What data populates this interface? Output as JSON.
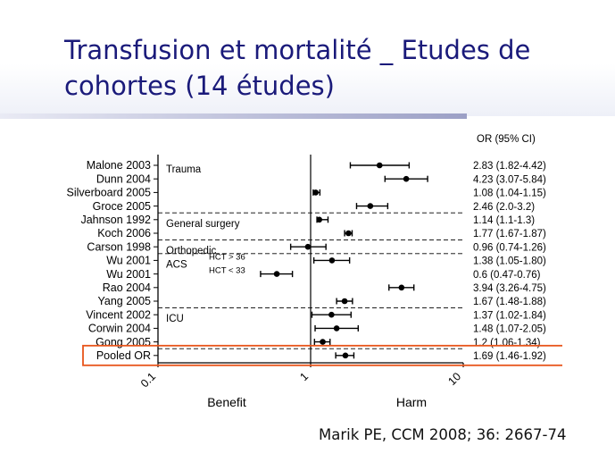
{
  "slide": {
    "title_line1": "Transfusion et mortalité _ Etudes de",
    "title_line2": "cohortes (14 études)",
    "citation": "Marik PE, CCM 2008; 36: 2667-74"
  },
  "chart_data": {
    "type": "forest",
    "x_scale": "log",
    "xlim": [
      0.1,
      10
    ],
    "x_ticks": [
      "0.1",
      "1",
      "10"
    ],
    "reference_line": 1,
    "xlabel_left": "Benefit",
    "xlabel_right": "Harm",
    "column_header": "OR (95% CI)",
    "rows": [
      {
        "label": "Malone 2003",
        "or": 2.83,
        "lo": 1.82,
        "hi": 4.42,
        "ci_text": "2.83 (1.82-4.42)"
      },
      {
        "label": "Dunn 2004",
        "or": 4.23,
        "lo": 3.07,
        "hi": 5.84,
        "ci_text": "4.23 (3.07-5.84)"
      },
      {
        "label": "Silverboard 2005",
        "or": 1.08,
        "lo": 1.04,
        "hi": 1.15,
        "ci_text": "1.08 (1.04-1.15)"
      },
      {
        "label": "Groce 2005",
        "or": 2.46,
        "lo": 2.0,
        "hi": 3.2,
        "ci_text": "2.46 (2.0-3.2)"
      },
      {
        "label": "Jahnson 1992",
        "or": 1.14,
        "lo": 1.1,
        "hi": 1.3,
        "ci_text": "1.14 (1.1-1.3)"
      },
      {
        "label": "Koch 2006",
        "or": 1.77,
        "lo": 1.67,
        "hi": 1.87,
        "ci_text": "1.77 (1.67-1.87)"
      },
      {
        "label": "Carson 1998",
        "or": 0.96,
        "lo": 0.74,
        "hi": 1.26,
        "ci_text": "0.96 (0.74-1.26)"
      },
      {
        "label": "Wu 2001",
        "or": 1.38,
        "lo": 1.05,
        "hi": 1.8,
        "ci_text": "1.38 (1.05-1.80)"
      },
      {
        "label": "Wu 2001",
        "or": 0.6,
        "lo": 0.47,
        "hi": 0.76,
        "ci_text": "0.6 (0.47-0.76)"
      },
      {
        "label": "Rao 2004",
        "or": 3.94,
        "lo": 3.26,
        "hi": 4.75,
        "ci_text": "3.94 (3.26-4.75)"
      },
      {
        "label": "Yang 2005",
        "or": 1.67,
        "lo": 1.48,
        "hi": 1.88,
        "ci_text": "1.67 (1.48-1.88)"
      },
      {
        "label": "Vincent 2002",
        "or": 1.37,
        "lo": 1.02,
        "hi": 1.84,
        "ci_text": "1.37 (1.02-1.84)"
      },
      {
        "label": "Corwin 2004",
        "or": 1.48,
        "lo": 1.07,
        "hi": 2.05,
        "ci_text": "1.48 (1.07-2.05)"
      },
      {
        "label": "Gong 2005",
        "or": 1.2,
        "lo": 1.06,
        "hi": 1.34,
        "ci_text": "1.2 (1.06-1.34)"
      },
      {
        "label": "Pooled OR",
        "or": 1.69,
        "lo": 1.46,
        "hi": 1.92,
        "ci_text": "1.69 (1.46-1.92)",
        "pooled": true
      }
    ],
    "groups": [
      {
        "label": "Trauma",
        "first_row": 0
      },
      {
        "label": "General surgery",
        "first_row": 4
      },
      {
        "label": "Orthopedic",
        "first_row": 6
      },
      {
        "label": "ACS",
        "first_row": 7
      },
      {
        "label": "ICU",
        "first_row": 11
      }
    ],
    "subgroup_labels": [
      {
        "text": "HCT > 36",
        "row": 7
      },
      {
        "text": "HCT < 33",
        "row": 8
      }
    ],
    "group_separators_after_rows": [
      3,
      5,
      6,
      10,
      13
    ],
    "highlight_row": 14,
    "colors": {
      "marks": "#000000",
      "highlight_border": "#e8541a",
      "dashed_lines": "#000000"
    }
  }
}
